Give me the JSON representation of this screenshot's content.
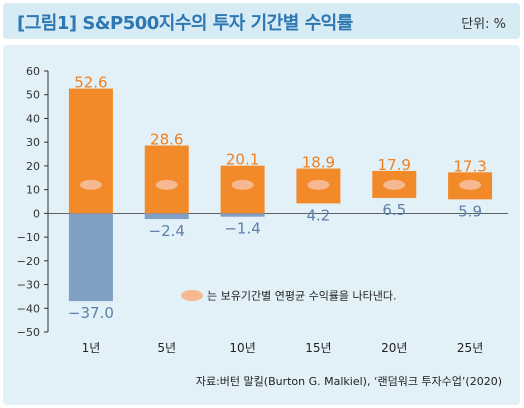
{
  "header": {
    "title": "[그림1] S&P500지수의 투자 기간별 수익률",
    "unit": "단위: %"
  },
  "source": "자료:버턴 말킬(Burton G. Malkiel), ‘랜덤워크 투자수업’(2020)",
  "legend": {
    "marker_name": "average-marker",
    "text": "는 보유기간별 연평균 수익률을 나타낸다."
  },
  "colors": {
    "title": "#2d78b2",
    "title_bar": "#d7ebf4",
    "panel": "#e2f1f8",
    "max_bar": "#f28a2a",
    "min_bar": "#7f9fc4",
    "average_marker": "#f6b890",
    "max_label": "#f07f1e",
    "min_label": "#5f80a8",
    "axis": "#333333"
  },
  "chart_data": {
    "type": "bar",
    "categories": [
      "1년",
      "5년",
      "10년",
      "15년",
      "20년",
      "25년"
    ],
    "series": [
      {
        "values": [
          52.6,
          28.6,
          20.1,
          18.9,
          17.9,
          17.3
        ]
      },
      {
        "values": [
          -37.0,
          -2.4,
          -1.4,
          4.2,
          6.5,
          5.9
        ]
      }
    ],
    "max_labels": [
      "52.6",
      "28.6",
      "20.1",
      "18.9",
      "17.9",
      "17.3"
    ],
    "min_labels": [
      "−37.0",
      "−2.4",
      "−1.4",
      "4.2",
      "6.5",
      "5.9"
    ],
    "average_marker_values": [
      12,
      12,
      12,
      12,
      12,
      12
    ],
    "ylim": [
      -50,
      60
    ],
    "yticks": [
      60,
      50,
      40,
      30,
      20,
      10,
      0,
      -10,
      -20,
      -30,
      -40,
      -50
    ],
    "ytick_labels": [
      "60",
      "50",
      "40",
      "30",
      "20",
      "10",
      "0",
      "−10",
      "−20",
      "−30",
      "−40",
      "−50"
    ],
    "grid": false,
    "legend_position": "bottom-center"
  }
}
